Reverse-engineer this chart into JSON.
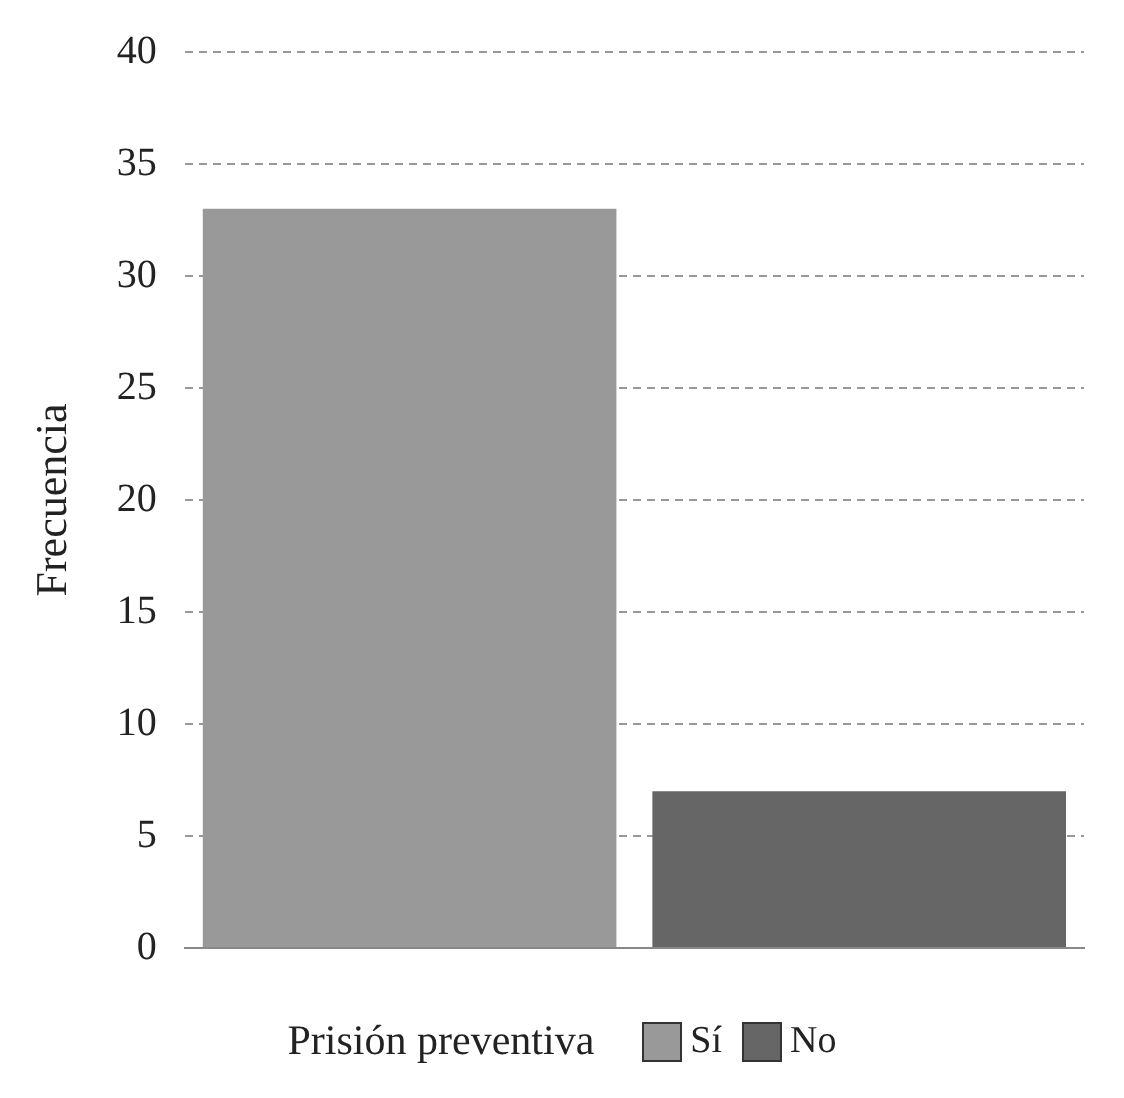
{
  "chart_data": {
    "type": "bar",
    "ylabel": "Frecuencia",
    "legend_title": "Prisión preventiva",
    "categories": [
      null
    ],
    "series": [
      {
        "name": "Sí",
        "color": "#999999",
        "values": [
          33
        ]
      },
      {
        "name": "No",
        "color": "#666666",
        "values": [
          7
        ]
      }
    ],
    "ylim": [
      0,
      40
    ],
    "yticks": [
      0,
      5,
      10,
      15,
      20,
      25,
      30,
      35,
      40
    ],
    "grid": "y",
    "legend": "bottom",
    "tick_labels": "y"
  }
}
